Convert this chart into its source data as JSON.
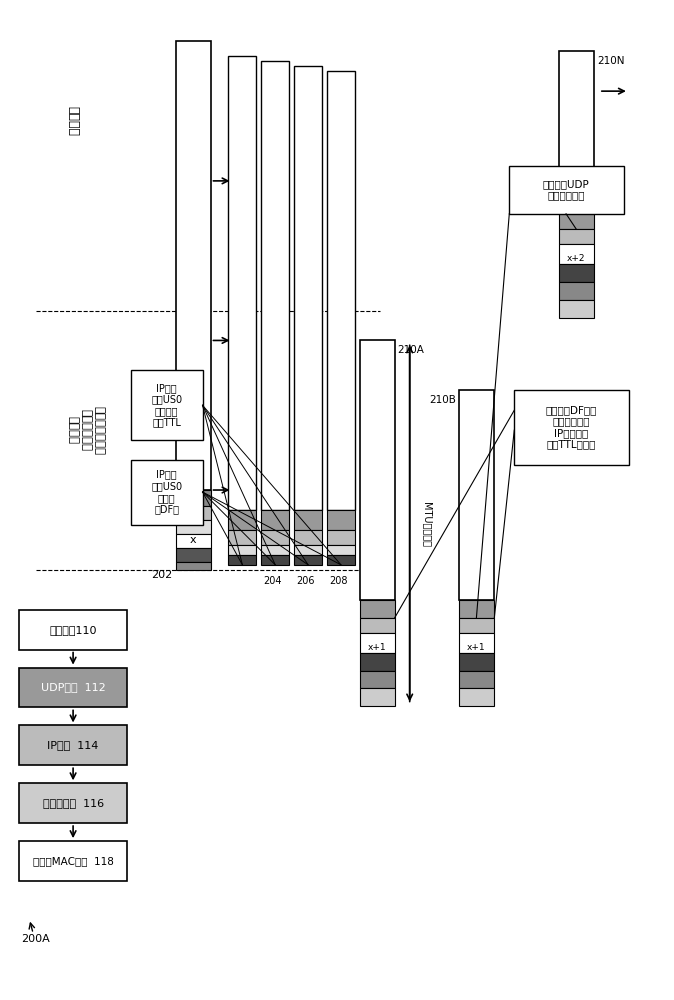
{
  "fig_width": 6.74,
  "fig_height": 10.0,
  "bg_color": "#ffffff",
  "label_200A": "200A",
  "label_user_mode": "用户模式",
  "label_kernel_mode": "内核模式（网络堆栈和以太网驱动器）",
  "label_kernel_line1": "内核模式",
  "label_kernel_line2": "（网络堆栈和",
  "label_kernel_line3": "以太网驱动器）",
  "label_202": "202",
  "label_204": "204",
  "label_206": "206",
  "label_208": "208",
  "label_app": "应用程序110",
  "label_udp": "UDP硬件  112",
  "label_ip_hw": "IP硬件  114",
  "label_eth": "以太网硬件  116",
  "label_mac": "以太网MAC硬件  118",
  "label_210A": "210A",
  "label_210B": "210B",
  "label_210N": "210N",
  "label_MTU": "MTU大小的帧",
  "label_ip_df_line1": "IP堆栈",
  "label_ip_df_line2": "设置US0",
  "label_ip_df_line3": "数据包",
  "label_ip_df_line4": "的DF位",
  "label_ip_ttl_line1": "IP堆栈",
  "label_ip_ttl_line2": "设置US0",
  "label_ip_ttl_line3": "数据包的",
  "label_ip_ttl_line4": "初始TTL",
  "label_hw_preserve_line1": "硬件保留DF位，",
  "label_hw_preserve_line2": "更新总长度、",
  "label_hw_preserve_line3": "IP校验和，",
  "label_hw_preserve_line4": "选增TTL字段。",
  "label_hw_udp_line1": "硬件更新UDP",
  "label_hw_udp_line2": "长度和校验和"
}
